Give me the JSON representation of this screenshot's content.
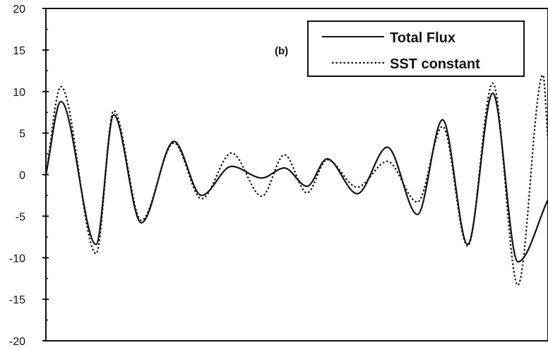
{
  "chart_data": {
    "type": "line",
    "panel_label": "(b)",
    "title": "",
    "xlabel": "",
    "ylabel": "",
    "xlim": [
      0,
      100
    ],
    "ylim": [
      -20,
      20
    ],
    "y_ticks": [
      -20,
      -15,
      -10,
      -5,
      0,
      5,
      10,
      15,
      20
    ],
    "y_tick_labels": [
      "-20",
      "-15",
      "-10",
      "-5",
      "0",
      "5",
      "10",
      "15",
      "20"
    ],
    "x_ticks_labeled": false,
    "grid": false,
    "legend_position": "top-right",
    "series": [
      {
        "name": "Total Flux",
        "style": "solid",
        "color": "#111111",
        "x": [
          0,
          3,
          10,
          13.5,
          19,
          25.5,
          31,
          37,
          43,
          47.5,
          52,
          56,
          62,
          68,
          74,
          79,
          84,
          89,
          94,
          100
        ],
        "y": [
          0,
          8.8,
          -8.4,
          7.2,
          -5.8,
          4.0,
          -2.5,
          1.0,
          -0.4,
          0.8,
          -1.4,
          1.9,
          -2.3,
          3.3,
          -4.8,
          6.6,
          -8.4,
          9.8,
          -10.5,
          -3.0
        ]
      },
      {
        "name": "SST constant",
        "style": "dotted",
        "color": "#111111",
        "x": [
          0,
          3,
          10,
          13.5,
          19,
          25.5,
          31,
          37,
          43,
          47.5,
          52,
          56,
          62,
          68,
          74,
          79,
          84,
          89,
          94,
          99,
          100
        ],
        "y": [
          0,
          10.6,
          -9.5,
          7.7,
          -5.5,
          3.8,
          -2.9,
          2.6,
          -2.6,
          2.4,
          -2.2,
          1.8,
          -1.5,
          1.6,
          -3.3,
          5.8,
          -8.6,
          11.0,
          -13.3,
          12.0,
          4.0
        ]
      }
    ]
  }
}
